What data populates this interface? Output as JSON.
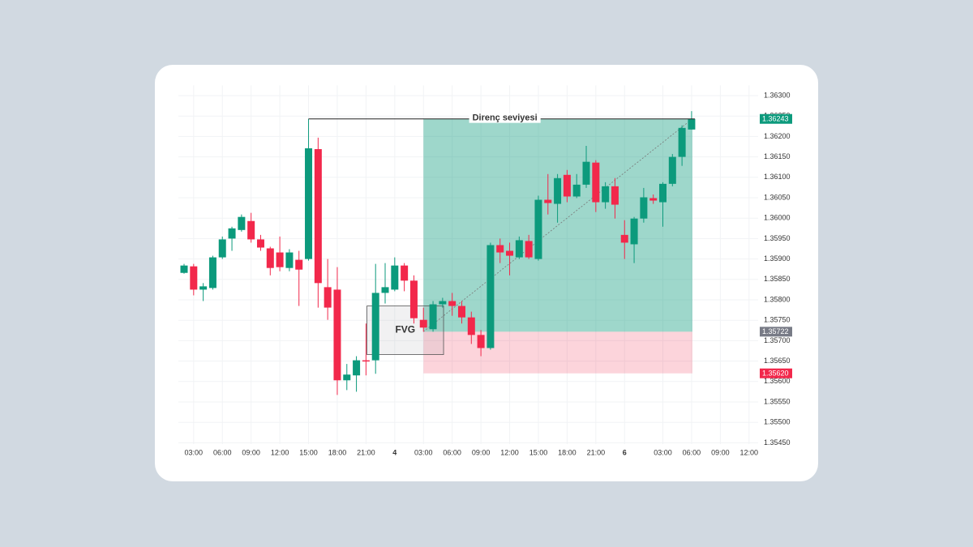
{
  "chart_data": {
    "type": "candlestick",
    "categories": [
      null,
      "03:00",
      null,
      null,
      "06:00",
      null,
      null,
      "09:00",
      null,
      null,
      "12:00",
      null,
      null,
      "15:00",
      null,
      null,
      "18:00",
      null,
      null,
      "21:00",
      null,
      null,
      "4",
      null,
      null,
      "03:00",
      null,
      null,
      "06:00",
      null,
      null,
      "09:00",
      null,
      null,
      "12:00",
      null,
      null,
      "15:00",
      null,
      null,
      "18:00",
      null,
      null,
      "21:00",
      null,
      null,
      "6",
      null,
      null,
      null,
      "03:00",
      null,
      null,
      "06:00",
      null,
      null,
      "09:00",
      null,
      null,
      "12:00"
    ],
    "open": [
      1.35866,
      1.35882,
      1.35825,
      1.35829,
      1.35904,
      1.3595,
      1.35971,
      1.35993,
      1.35948,
      1.35926,
      1.35916,
      1.35878,
      1.35898,
      1.359,
      1.36169,
      1.35831,
      1.35825,
      1.35603,
      1.35615,
      1.35652,
      1.35652,
      1.35817,
      1.35825,
      1.35884,
      1.35847,
      1.35751,
      1.35728,
      1.35789,
      1.35797,
      1.35785,
      1.35757,
      1.35714,
      1.35682,
      1.35934,
      1.3592,
      1.35904,
      1.35944,
      1.359,
      1.36045,
      1.36035,
      1.36106,
      1.36053,
      1.36082,
      1.36136,
      1.36039,
      1.36078,
      1.35959,
      1.35936,
      1.35999,
      1.36049,
      1.36039,
      1.36084,
      1.3615,
      1.36217,
      null,
      null,
      null,
      null,
      null,
      null
    ],
    "high": [
      1.35888,
      1.35888,
      1.35841,
      1.35908,
      1.35955,
      1.35979,
      1.36009,
      1.36013,
      1.35959,
      1.3593,
      1.35955,
      1.35924,
      1.3592,
      1.36243,
      1.36197,
      1.359,
      1.3588,
      1.35643,
      1.35662,
      1.35742,
      1.35888,
      1.3589,
      1.35904,
      1.3589,
      1.3586,
      1.35781,
      1.35797,
      1.35805,
      1.35817,
      1.35797,
      1.35771,
      1.35726,
      1.3594,
      1.3595,
      1.3594,
      1.35955,
      1.35959,
      1.36055,
      1.36108,
      1.36108,
      1.36118,
      1.36108,
      1.36177,
      1.36142,
      1.36088,
      1.36098,
      1.35995,
      1.36003,
      1.36074,
      1.36058,
      1.36088,
      1.36157,
      1.36227,
      1.36262,
      null,
      null,
      null,
      null,
      null,
      null
    ],
    "low": [
      1.35864,
      1.35811,
      1.35797,
      1.35825,
      1.359,
      1.3592,
      1.35967,
      1.3594,
      1.3592,
      1.3586,
      1.3587,
      1.3587,
      1.35785,
      1.35896,
      1.35781,
      1.35751,
      1.35567,
      1.35579,
      1.35575,
      1.35615,
      1.35619,
      1.35791,
      1.35821,
      1.35821,
      1.35742,
      1.35722,
      1.35722,
      1.35781,
      1.35761,
      1.35742,
      1.35692,
      1.35662,
      1.35678,
      1.3589,
      1.3586,
      1.359,
      1.359,
      1.35896,
      1.36009,
      1.35989,
      1.36039,
      1.36049,
      1.36074,
      1.36015,
      1.36023,
      1.35999,
      1.359,
      1.3589,
      1.35989,
      1.36035,
      1.35979,
      1.36078,
      1.36128,
      1.36217,
      null,
      null,
      null,
      null,
      null,
      null
    ],
    "close": [
      1.35884,
      1.35825,
      1.35833,
      1.35904,
      1.35948,
      1.35975,
      1.36003,
      1.35948,
      1.35928,
      1.35878,
      1.3588,
      1.35916,
      1.35874,
      1.36171,
      1.35841,
      1.35781,
      1.35603,
      1.35617,
      1.35652,
      1.35649,
      1.35817,
      1.35831,
      1.35884,
      1.35847,
      1.35755,
      1.35732,
      1.35789,
      1.35797,
      1.35785,
      1.35757,
      1.35714,
      1.35682,
      1.35934,
      1.35916,
      1.35908,
      1.35946,
      1.35904,
      1.36045,
      1.36037,
      1.36098,
      1.36053,
      1.36082,
      1.36138,
      1.36039,
      1.36078,
      1.36033,
      1.3594,
      1.35999,
      1.36051,
      1.36043,
      1.36084,
      1.3615,
      1.36221,
      1.36243,
      null,
      null,
      null,
      null,
      null,
      null
    ],
    "up_color": "#0c9a7c",
    "down_color": "#f2284b",
    "ylim": [
      1.35425,
      1.36325
    ],
    "yticks": [
      {
        "value": 1.363,
        "label": "1.36300"
      },
      {
        "value": 1.3625,
        "label": "1.36250"
      },
      {
        "value": 1.362,
        "label": "1.36200"
      },
      {
        "value": 1.3615,
        "label": "1.36150"
      },
      {
        "value": 1.361,
        "label": "1.36100"
      },
      {
        "value": 1.3605,
        "label": "1.36050"
      },
      {
        "value": 1.36,
        "label": "1.36000"
      },
      {
        "value": 1.3595,
        "label": "1.35950"
      },
      {
        "value": 1.359,
        "label": "1.35900"
      },
      {
        "value": 1.3585,
        "label": "1.35850"
      },
      {
        "value": 1.358,
        "label": "1.35800"
      },
      {
        "value": 1.3575,
        "label": "1.35750"
      },
      {
        "value": 1.357,
        "label": "1.35700"
      },
      {
        "value": 1.3565,
        "label": "1.35650"
      },
      {
        "value": 1.356,
        "label": "1.35600"
      },
      {
        "value": 1.3555,
        "label": "1.35550"
      },
      {
        "value": 1.355,
        "label": "1.35500"
      },
      {
        "value": 1.3545,
        "label": "1.35450"
      }
    ],
    "grid": true,
    "resistance": {
      "label": "Direnç seviyesi",
      "value": 1.36243
    },
    "fvg": {
      "label": "FVG",
      "top": 1.35785,
      "bottom": 1.35666
    },
    "position": {
      "target": 1.36243,
      "target_color": "#0c9a7c",
      "entry": 1.35722,
      "entry_color": "#787b86",
      "stop": {
        "value": 1.3562,
        "label": "1.35620"
      },
      "stop_color": "#f2284b"
    }
  }
}
